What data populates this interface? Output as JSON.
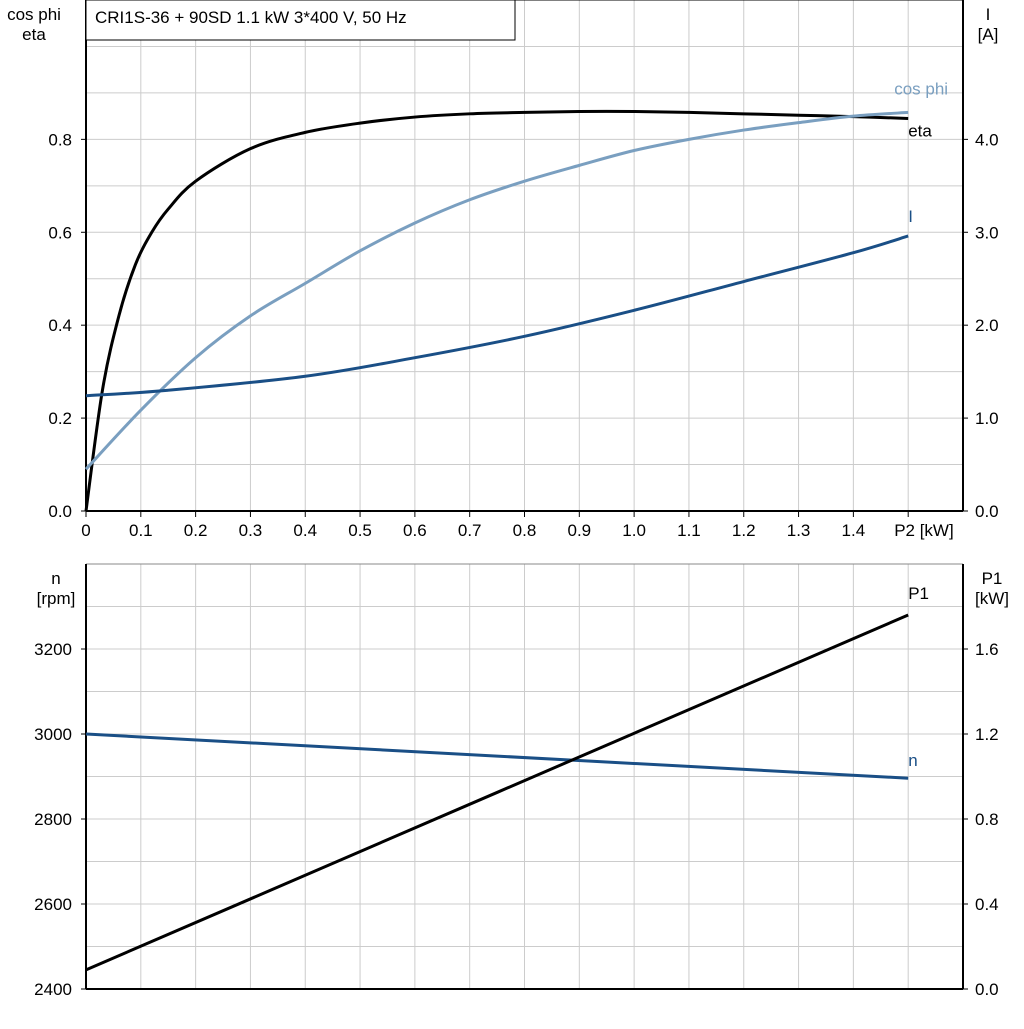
{
  "chart_data": [
    {
      "type": "line",
      "title": "CRI1S-36 + 90SD   1.1 kW   3*400 V, 50 Hz",
      "xlabel": "P2 [kW]",
      "ylabel_left": [
        "cos phi",
        "eta"
      ],
      "ylabel_right": [
        "I",
        "[A]"
      ],
      "xlim": [
        0,
        1.6
      ],
      "ylim_left": [
        0,
        1.1
      ],
      "ylim_right": [
        0,
        5.5
      ],
      "grid": true,
      "x_ticks": [
        "0",
        "0.1",
        "0.2",
        "0.3",
        "0.4",
        "0.5",
        "0.6",
        "0.7",
        "0.8",
        "0.9",
        "1.0",
        "1.1",
        "1.2",
        "1.3",
        "1.4"
      ],
      "y_ticks_left": [
        "0.0",
        "0.2",
        "0.4",
        "0.6",
        "0.8"
      ],
      "y_ticks_right": [
        "0.0",
        "1.0",
        "2.0",
        "3.0",
        "4.0"
      ],
      "series": [
        {
          "name": "eta",
          "axis": "left",
          "color": "#000000",
          "x": [
            0,
            0.03,
            0.06,
            0.09,
            0.12,
            0.15,
            0.2,
            0.3,
            0.4,
            0.5,
            0.6,
            0.7,
            0.8,
            0.9,
            1.0,
            1.1,
            1.2,
            1.3,
            1.4,
            1.5
          ],
          "y": [
            0,
            0.26,
            0.42,
            0.53,
            0.6,
            0.65,
            0.71,
            0.78,
            0.815,
            0.835,
            0.848,
            0.855,
            0.858,
            0.86,
            0.86,
            0.858,
            0.855,
            0.852,
            0.849,
            0.845
          ]
        },
        {
          "name": "cos phi",
          "axis": "left",
          "color": "#7a9fc0",
          "x": [
            0,
            0.1,
            0.2,
            0.3,
            0.4,
            0.5,
            0.6,
            0.7,
            0.8,
            0.9,
            1.0,
            1.1,
            1.2,
            1.3,
            1.4,
            1.5
          ],
          "y": [
            0.09,
            0.217,
            0.33,
            0.42,
            0.49,
            0.56,
            0.62,
            0.67,
            0.71,
            0.744,
            0.776,
            0.8,
            0.82,
            0.836,
            0.85,
            0.858
          ]
        },
        {
          "name": "I",
          "axis": "right",
          "color": "#1a4f86",
          "x": [
            0,
            0.15,
            0.4,
            0.6,
            0.8,
            1.0,
            1.2,
            1.4,
            1.5
          ],
          "y": [
            1.24,
            1.3,
            1.45,
            1.65,
            1.88,
            2.16,
            2.47,
            2.78,
            2.96
          ]
        }
      ]
    },
    {
      "type": "line",
      "ylabel_left": [
        "n",
        "[rpm]"
      ],
      "ylabel_right": [
        "P1",
        "[kW]"
      ],
      "xlim": [
        0,
        1.6
      ],
      "ylim_left": [
        2400,
        3400
      ],
      "ylim_right": [
        0,
        2.0
      ],
      "grid": true,
      "y_ticks_left": [
        "2400",
        "2600",
        "2800",
        "3000",
        "3200"
      ],
      "y_ticks_right": [
        "0.0",
        "0.4",
        "0.8",
        "1.2",
        "1.6"
      ],
      "series": [
        {
          "name": "n",
          "axis": "left",
          "color": "#1a4f86",
          "x": [
            0,
            1.5
          ],
          "y": [
            3000,
            2896
          ]
        },
        {
          "name": "P1",
          "axis": "right",
          "color": "#000000",
          "x": [
            0,
            1.5
          ],
          "y": [
            0.09,
            1.76
          ]
        }
      ]
    }
  ]
}
